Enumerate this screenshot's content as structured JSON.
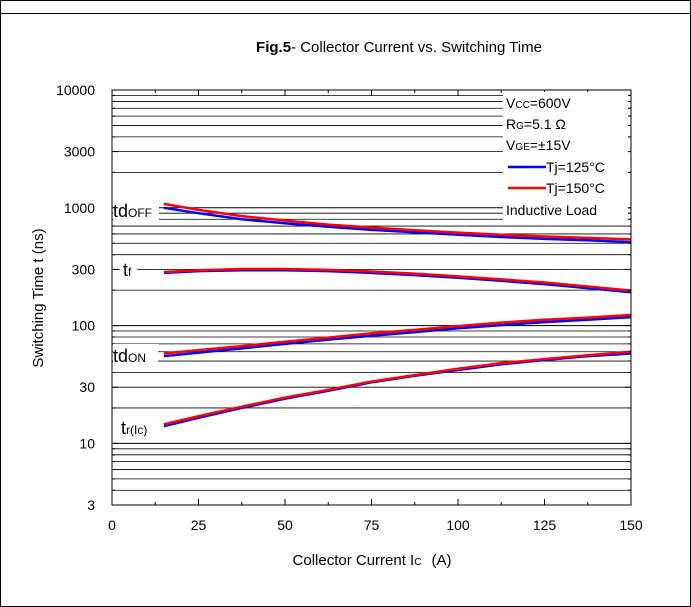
{
  "chart_data": {
    "type": "line",
    "title_bold": "Fig.5",
    "title_rest": "- Collector Current vs. Switching Time",
    "xlabel_main": "Collector Current I",
    "xlabel_sub": "C",
    "xlabel_unit": "(A)",
    "ylabel": "Switching Time t  (ns)",
    "xlim": [
      0,
      150
    ],
    "ylim": [
      3,
      10000
    ],
    "yscale": "log",
    "grid": true,
    "x_ticks": [
      0,
      25,
      50,
      75,
      100,
      125,
      150
    ],
    "y_ticks": [
      3,
      10,
      30,
      100,
      300,
      1000,
      3000,
      10000
    ],
    "y_tick_labels": [
      "3",
      "10",
      "30",
      "100",
      "300",
      "1000",
      "3000",
      "10000"
    ],
    "legend": {
      "placement": "top-right",
      "conditions": [
        {
          "main": "V",
          "sub": "CC",
          "rest": "=600V"
        },
        {
          "main": "R",
          "sub": "G",
          "rest": "=5.1 Ω"
        },
        {
          "main": "V",
          "sub": "GE",
          "rest": "=±15V"
        }
      ],
      "footer": "Inductive Load"
    },
    "series": [
      {
        "name": "Tj=125°C",
        "color": "#0000ff"
      },
      {
        "name": "Tj=150°C",
        "color": "#ff0000"
      }
    ],
    "curve_labels": [
      {
        "main": "td",
        "sub": "OFF"
      },
      {
        "main": "t",
        "sub": "f"
      },
      {
        "main": "td",
        "sub": "ON"
      },
      {
        "main": "t",
        "sub": "r(Ic)"
      }
    ],
    "curves": [
      {
        "label": "tdOFF",
        "x": [
          15,
          25,
          37.5,
          50,
          62.5,
          75,
          87.5,
          100,
          112.5,
          125,
          137.5,
          150
        ],
        "tj125": [
          1000,
          900,
          800,
          740,
          690,
          650,
          620,
          590,
          565,
          545,
          530,
          510
        ],
        "tj150": [
          1080,
          960,
          850,
          780,
          720,
          680,
          645,
          615,
          590,
          570,
          555,
          540
        ]
      },
      {
        "label": "tf",
        "x": [
          15,
          25,
          37.5,
          50,
          62.5,
          75,
          87.5,
          100,
          112.5,
          125,
          137.5,
          150
        ],
        "tj125": [
          280,
          290,
          295,
          295,
          290,
          280,
          268,
          255,
          240,
          225,
          208,
          192
        ],
        "tj150": [
          285,
          295,
          302,
          302,
          297,
          288,
          276,
          262,
          247,
          232,
          215,
          198
        ]
      },
      {
        "label": "tdON",
        "x": [
          15,
          25,
          37.5,
          50,
          62.5,
          75,
          87.5,
          100,
          112.5,
          125,
          137.5,
          150
        ],
        "tj125": [
          55,
          59,
          64,
          70,
          76,
          82,
          88,
          95,
          101,
          107,
          112,
          118
        ],
        "tj150": [
          58,
          62,
          67,
          73,
          79,
          86,
          92,
          99,
          106,
          112,
          117,
          123
        ]
      },
      {
        "label": "tr(Ic)",
        "x": [
          15,
          25,
          37.5,
          50,
          62.5,
          75,
          87.5,
          100,
          112.5,
          125,
          137.5,
          150
        ],
        "tj125": [
          14,
          16.5,
          20,
          24,
          28,
          33,
          37.5,
          42,
          47,
          51,
          55,
          58
        ],
        "tj150": [
          14.5,
          17,
          20.5,
          24.5,
          28.5,
          33.5,
          38,
          43,
          48,
          52,
          56,
          60
        ]
      }
    ]
  }
}
